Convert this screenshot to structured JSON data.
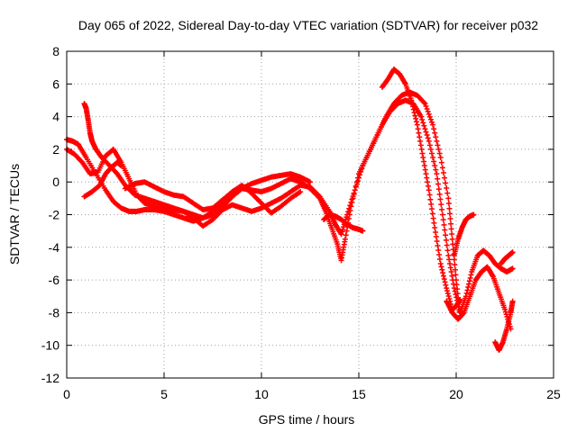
{
  "chart_data": {
    "type": "scatter",
    "title": "Day 065 of 2022, Sidereal Day-to-day VTEC variation (SDTVAR) for receiver p032",
    "xlabel": "GPS time / hours",
    "ylabel": "SDTVAR / TECUs",
    "xlim": [
      0,
      25
    ],
    "ylim": [
      -12,
      8
    ],
    "xticks": [
      "0",
      "5",
      "10",
      "15",
      "20",
      "25"
    ],
    "yticks": [
      "-12",
      "-10",
      "-8",
      "-6",
      "-4",
      "-2",
      "0",
      "2",
      "4",
      "6",
      "8"
    ],
    "grid": true,
    "marker": "+",
    "color": "#ff0000",
    "series": [
      {
        "x": [
          0.0,
          0.3,
          0.6,
          1.0,
          1.5,
          2.0,
          2.4,
          2.8,
          3.2,
          3.6,
          4.0,
          4.5,
          5.0,
          5.5,
          6.0,
          6.5,
          7.0,
          7.5,
          8.0,
          8.5,
          9.0,
          9.5,
          10.0,
          10.5,
          11.0,
          11.5,
          12.0,
          12.5,
          13.0,
          13.3,
          13.6,
          13.9,
          14.1,
          14.3,
          14.6,
          15.0,
          15.4,
          15.8,
          16.2,
          16.6,
          17.0,
          17.4,
          17.8,
          18.2,
          18.6,
          19.0,
          19.3,
          19.6,
          19.9,
          20.2,
          20.5,
          20.8,
          21.1,
          21.4,
          21.7,
          22.0,
          22.3,
          22.6,
          22.9
        ],
        "y": [
          2.6,
          2.5,
          2.3,
          1.5,
          0.5,
          -0.5,
          -1.2,
          -1.6,
          -1.8,
          -1.8,
          -1.7,
          -1.7,
          -1.8,
          -2.0,
          -2.2,
          -2.4,
          -2.2,
          -1.8,
          -1.2,
          -0.6,
          -0.4,
          -0.5,
          -0.6,
          -0.4,
          -0.1,
          0.2,
          0.0,
          -0.4,
          -1.0,
          -1.8,
          -2.8,
          -3.8,
          -4.8,
          -3.5,
          -1.5,
          0.5,
          1.5,
          2.5,
          3.5,
          4.3,
          4.8,
          5.0,
          4.8,
          4.0,
          2.5,
          0.5,
          -2.0,
          -4.5,
          -6.5,
          -8.0,
          -7.0,
          -5.5,
          -4.5,
          -4.2,
          -4.5,
          -5.0,
          -5.3,
          -5.5,
          -5.3
        ]
      },
      {
        "x": [
          0.0,
          0.4,
          0.8,
          1.2,
          1.6,
          2.0,
          2.4,
          2.8,
          3.2,
          3.6,
          4.0,
          4.5,
          5.0,
          5.5,
          6.0,
          6.5,
          7.0,
          7.5,
          8.0,
          8.5,
          9.0,
          9.5,
          10.0,
          10.5,
          11.0,
          11.5,
          12.0,
          12.5,
          13.0,
          13.5,
          13.8,
          14.1,
          14.4,
          14.8,
          15.2,
          15.6,
          16.0,
          16.4,
          16.8,
          17.2,
          17.6,
          18.0,
          18.4,
          18.8,
          19.2,
          19.6,
          19.8,
          20.0,
          20.2
        ],
        "y": [
          2.0,
          1.7,
          1.2,
          0.5,
          0.6,
          1.6,
          2.0,
          1.2,
          0.2,
          -0.8,
          -1.3,
          -1.5,
          -1.6,
          -1.7,
          -1.8,
          -2.2,
          -2.7,
          -2.3,
          -1.7,
          -1.4,
          -1.6,
          -1.8,
          -1.6,
          -1.3,
          -1.0,
          -0.6,
          -0.2,
          -0.3,
          -0.9,
          -1.8,
          -2.6,
          -3.2,
          -2.0,
          -0.5,
          1.0,
          2.0,
          3.0,
          4.0,
          4.8,
          5.3,
          5.5,
          5.3,
          4.8,
          3.5,
          1.5,
          -1.0,
          -3.5,
          -6.0,
          -8.2
        ]
      },
      {
        "x": [
          0.9,
          1.0,
          1.1,
          1.2,
          1.3,
          1.5,
          1.8,
          2.2,
          2.6,
          3.0,
          3.5,
          4.0,
          4.5,
          5.0,
          5.5,
          6.0,
          6.5,
          7.0,
          7.5,
          8.0,
          8.5,
          9.0,
          9.5,
          10.0,
          10.5,
          11.0,
          11.5,
          12.0,
          12.5
        ],
        "y": [
          4.8,
          4.5,
          3.8,
          3.0,
          2.5,
          2.0,
          1.5,
          1.0,
          0.5,
          -0.2,
          -0.8,
          -1.0,
          -1.2,
          -1.4,
          -1.6,
          -1.8,
          -2.0,
          -2.2,
          -2.0,
          -1.5,
          -0.9,
          -0.4,
          -0.1,
          0.1,
          0.3,
          0.4,
          0.5,
          0.3,
          0.0
        ]
      },
      {
        "x": [
          3.0,
          3.5,
          4.0,
          4.5,
          5.0,
          5.5,
          6.0,
          6.5,
          7.0,
          7.5,
          8.0,
          8.5,
          9.0,
          9.5,
          10.0,
          10.5,
          11.0,
          11.5,
          12.0
        ],
        "y": [
          -0.4,
          -0.1,
          0.0,
          -0.3,
          -0.6,
          -0.8,
          -0.9,
          -1.3,
          -1.7,
          -1.6,
          -1.1,
          -0.6,
          -0.2,
          -0.7,
          -1.3,
          -1.9,
          -1.5,
          -1.0,
          -0.6
        ]
      },
      {
        "x": [
          0.9,
          1.3,
          1.7,
          2.0,
          2.3,
          2.6,
          2.8
        ],
        "y": [
          -0.9,
          -0.6,
          -0.2,
          0.5,
          0.9,
          1.2,
          1.0
        ]
      },
      {
        "x": [
          13.2,
          13.5,
          13.8,
          14.1,
          14.4,
          14.7,
          15.0,
          15.2
        ],
        "y": [
          -2.3,
          -2.0,
          -2.1,
          -2.3,
          -2.6,
          -2.8,
          -2.9,
          -3.0
        ]
      },
      {
        "x": [
          16.2,
          16.5,
          16.8,
          17.1,
          17.4,
          17.7,
          18.0,
          18.3,
          18.6,
          18.9,
          19.2,
          19.5,
          19.8,
          20.0,
          20.2
        ],
        "y": [
          5.8,
          6.3,
          6.9,
          6.6,
          6.0,
          5.0,
          3.5,
          1.5,
          -0.5,
          -2.8,
          -5.0,
          -6.5,
          -7.8,
          -7.6,
          -7.2
        ]
      },
      {
        "x": [
          19.5,
          19.8,
          20.1,
          20.4,
          20.7,
          21.0,
          21.3,
          21.6,
          21.9,
          22.2,
          22.5,
          22.8
        ],
        "y": [
          -7.3,
          -8.0,
          -8.4,
          -8.0,
          -7.0,
          -6.0,
          -5.5,
          -5.2,
          -5.8,
          -6.8,
          -7.8,
          -9.0
        ]
      },
      {
        "x": [
          19.9,
          20.1,
          20.3,
          20.5,
          20.7,
          20.9
        ],
        "y": [
          -4.5,
          -3.5,
          -2.8,
          -2.3,
          -2.1,
          -2.0
        ]
      },
      {
        "x": [
          22.0,
          22.2,
          22.4,
          22.6,
          22.8,
          22.9
        ],
        "y": [
          -9.8,
          -10.3,
          -9.8,
          -9.0,
          -8.0,
          -7.3
        ]
      },
      {
        "x": [
          22.3,
          22.5,
          22.7,
          22.9
        ],
        "y": [
          -5.0,
          -4.7,
          -4.5,
          -4.3
        ]
      }
    ]
  }
}
